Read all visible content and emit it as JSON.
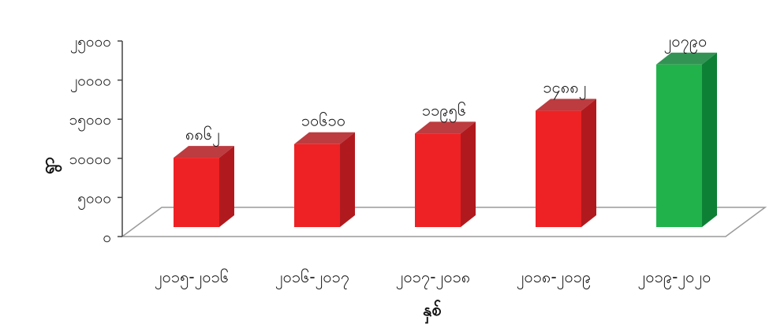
{
  "chart_data": {
    "type": "bar",
    "style": "3d-column",
    "title": "",
    "xlabel": "နှစ်",
    "ylabel": "ရွာ",
    "categories": [
      "၂၀၁၅-၂၀၁၆",
      "၂၀၁၆-၂၀၁၇",
      "၂၀၁၇-၂၀၁၈",
      "၂၀၁၈-၂၀၁၉",
      "၂၀၁၉-၂၀၂၀"
    ],
    "values": [
      8862,
      10610,
      11956,
      14882,
      20790
    ],
    "data_labels": [
      "၈၈၆၂",
      "၁၀၆၁၀",
      "၁၁၉၅၆",
      "၁၄၈၈၂",
      "၂၀၇၉၀"
    ],
    "ylim": [
      0,
      25000
    ],
    "yticks": [
      0,
      5000,
      10000,
      15000,
      20000,
      25000
    ],
    "ytick_labels": [
      "၀",
      "၅၀၀၀",
      "၁၀၀၀၀",
      "၁၅၀၀၀",
      "၂၀၀၀၀",
      "၂၅၀၀၀"
    ],
    "grid": false,
    "bar_colors": [
      "#ee2224",
      "#ee2224",
      "#ee2224",
      "#ee2224",
      "#22b24c"
    ],
    "bar_side_colors": [
      "#b01a1e",
      "#b01a1e",
      "#b01a1e",
      "#b01a1e",
      "#0e8036"
    ]
  }
}
